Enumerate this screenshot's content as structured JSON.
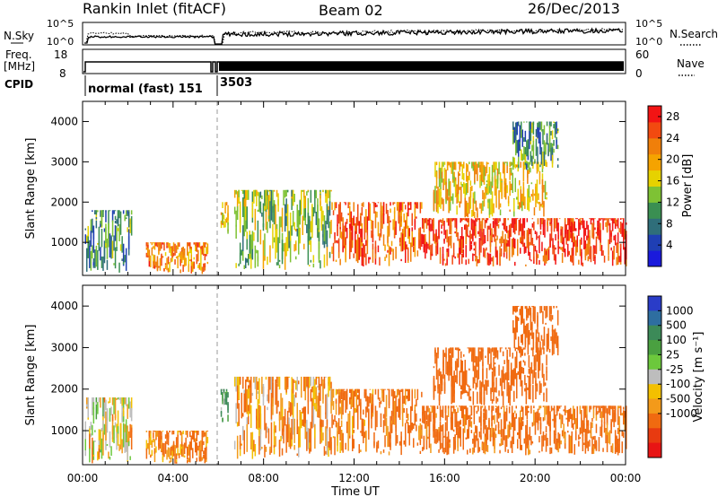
{
  "header": {
    "title": "Rankin Inlet (fitACF)",
    "beam": "Beam 02",
    "date": "26/Dec/2013"
  },
  "strip": {
    "nsky_label": "N.Sky",
    "nsky_ticks": [
      "10^5",
      "10^0"
    ],
    "nsearch_ticks": [
      "10^5",
      "10^0"
    ],
    "nsearch_label": "N.Search",
    "freq_label": "Freq.",
    "freq_unit": "[MHz]",
    "freq_ticks": [
      "18",
      "8"
    ],
    "nave_ticks": [
      "60",
      "0"
    ],
    "nave_label": "Nave",
    "cpid_label": "CPID",
    "cpid_segments": [
      {
        "label": "normal (fast) 151",
        "start_hour": 0.0,
        "end_hour": 6.0
      },
      {
        "label": "3503",
        "start_hour": 6.0,
        "end_hour": 24.0
      }
    ]
  },
  "chart_data": [
    {
      "type": "heatmap",
      "name": "power",
      "ylabel": "Slant Range [km]",
      "yticks": [
        "1000",
        "2000",
        "3000",
        "4000"
      ],
      "ylim": [
        180,
        4500
      ],
      "xlim": [
        0,
        24
      ],
      "colorbar": {
        "label": "Power [dB]",
        "ticks": [
          "4",
          "8",
          "12",
          "16",
          "20",
          "24",
          "28"
        ],
        "range": [
          0,
          30
        ],
        "colors": [
          "#1a1adc",
          "#1f3fb4",
          "#2f6e7a",
          "#3a8f52",
          "#7ec234",
          "#e6d200",
          "#f5a300",
          "#f07f0a",
          "#f24a10",
          "#f21414"
        ]
      },
      "echo_regions": [
        {
          "t0": 0.1,
          "t1": 2.2,
          "r_lo": 200,
          "r_hi": 1800,
          "value": 10
        },
        {
          "t0": 2.8,
          "t1": 5.5,
          "r_lo": 200,
          "r_hi": 1000,
          "value": 22
        },
        {
          "t0": 6.1,
          "t1": 6.4,
          "r_lo": 1200,
          "r_hi": 2000,
          "value": 20
        },
        {
          "t0": 6.7,
          "t1": 11.0,
          "r_lo": 300,
          "r_hi": 2300,
          "value": 14
        },
        {
          "t0": 11.0,
          "t1": 15.0,
          "r_lo": 400,
          "r_hi": 2000,
          "value": 24
        },
        {
          "t0": 15.0,
          "t1": 24.0,
          "r_lo": 400,
          "r_hi": 1600,
          "value": 27
        },
        {
          "t0": 15.5,
          "t1": 20.5,
          "r_lo": 1600,
          "r_hi": 3000,
          "value": 18
        },
        {
          "t0": 19.0,
          "t1": 21.0,
          "r_lo": 2800,
          "r_hi": 4000,
          "value": 10
        }
      ]
    },
    {
      "type": "heatmap",
      "name": "velocity",
      "ylabel": "Slant Range [km]",
      "yticks": [
        "1000",
        "2000",
        "3000",
        "4000"
      ],
      "ylim": [
        180,
        4500
      ],
      "xlim": [
        0,
        24
      ],
      "xlabel": "Time UT",
      "xticks": [
        "00:00",
        "04:00",
        "08:00",
        "12:00",
        "16:00",
        "20:00",
        "00:00"
      ],
      "colorbar": {
        "label": "Velocity [m s⁻¹]",
        "ticks": [
          "1000",
          "500",
          "100",
          "25",
          "-25",
          "-100",
          "-500",
          "-1000"
        ],
        "colors": [
          "#2a3cc8",
          "#2e6ea0",
          "#3c8a58",
          "#4aa040",
          "#6cc83c",
          "#bdbdbd",
          "#f3c000",
          "#f39a1a",
          "#f06a10",
          "#e83a10",
          "#e81414"
        ]
      },
      "echo_regions": [
        {
          "t0": 0.1,
          "t1": 2.2,
          "r_lo": 200,
          "r_hi": 1800,
          "value": -30
        },
        {
          "t0": 2.8,
          "t1": 5.5,
          "r_lo": 200,
          "r_hi": 1000,
          "value": -120
        },
        {
          "t0": 6.1,
          "t1": 6.4,
          "r_lo": 1200,
          "r_hi": 2000,
          "value": 60
        },
        {
          "t0": 6.7,
          "t1": 11.0,
          "r_lo": 300,
          "r_hi": 2300,
          "value": -90
        },
        {
          "t0": 11.0,
          "t1": 15.0,
          "r_lo": 400,
          "r_hi": 2000,
          "value": -140
        },
        {
          "t0": 15.0,
          "t1": 24.0,
          "r_lo": 400,
          "r_hi": 1600,
          "value": -160
        },
        {
          "t0": 15.5,
          "t1": 20.5,
          "r_lo": 1600,
          "r_hi": 3000,
          "value": -200
        },
        {
          "t0": 19.0,
          "t1": 21.0,
          "r_lo": 2800,
          "r_hi": 4000,
          "value": -300
        }
      ]
    }
  ]
}
